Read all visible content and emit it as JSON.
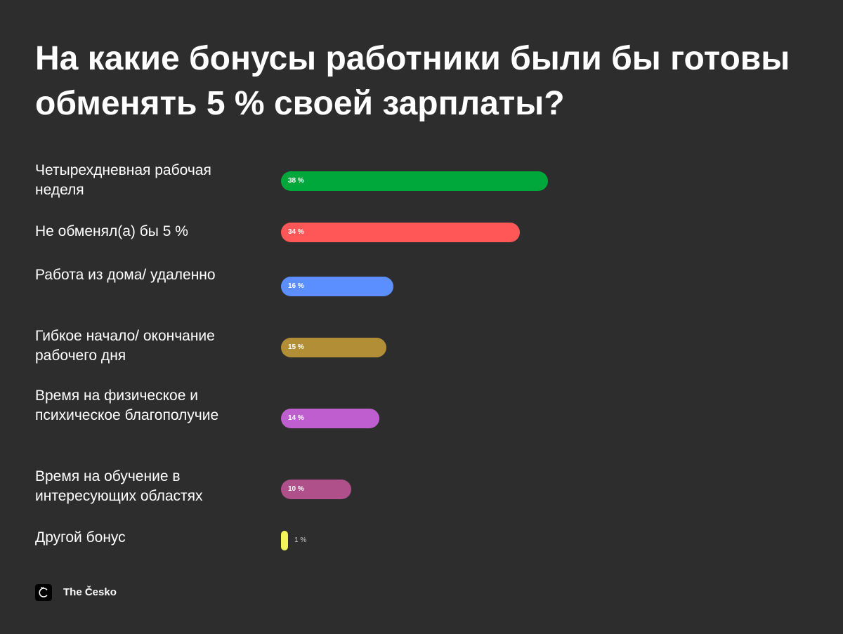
{
  "title": "На какие бонусы работники были бы готовы обменять 5 % своей зарплаты?",
  "chart_data": {
    "type": "bar",
    "orientation": "horizontal",
    "title": "На какие бонусы работники были бы готовы обменять 5 % своей зарплаты?",
    "categories": [
      "Четырехдневная рабочая неделя",
      "Не обменял(а) бы 5 %",
      "Работа из дома/ удаленно",
      "Гибкое начало/ окончание рабочего дня",
      "Время на физическое и психическое благополучие",
      "Время на обучение в интересующих областях",
      "Другой бонус"
    ],
    "values": [
      38,
      34,
      16,
      15,
      14,
      10,
      1
    ],
    "value_labels": [
      "38 %",
      "34 %",
      "16 %",
      "15 %",
      "14 %",
      "10 %",
      "1 %"
    ],
    "colors": [
      "#00a83c",
      "#ff5757",
      "#5b8fff",
      "#b28e36",
      "#bf5fcf",
      "#b0508a",
      "#f3f35a"
    ],
    "xlim": [
      0,
      38
    ],
    "grid": false,
    "legend": "none"
  },
  "brand": {
    "logo_icon": "the-cesko-logo-icon",
    "name": "The Česko"
  }
}
